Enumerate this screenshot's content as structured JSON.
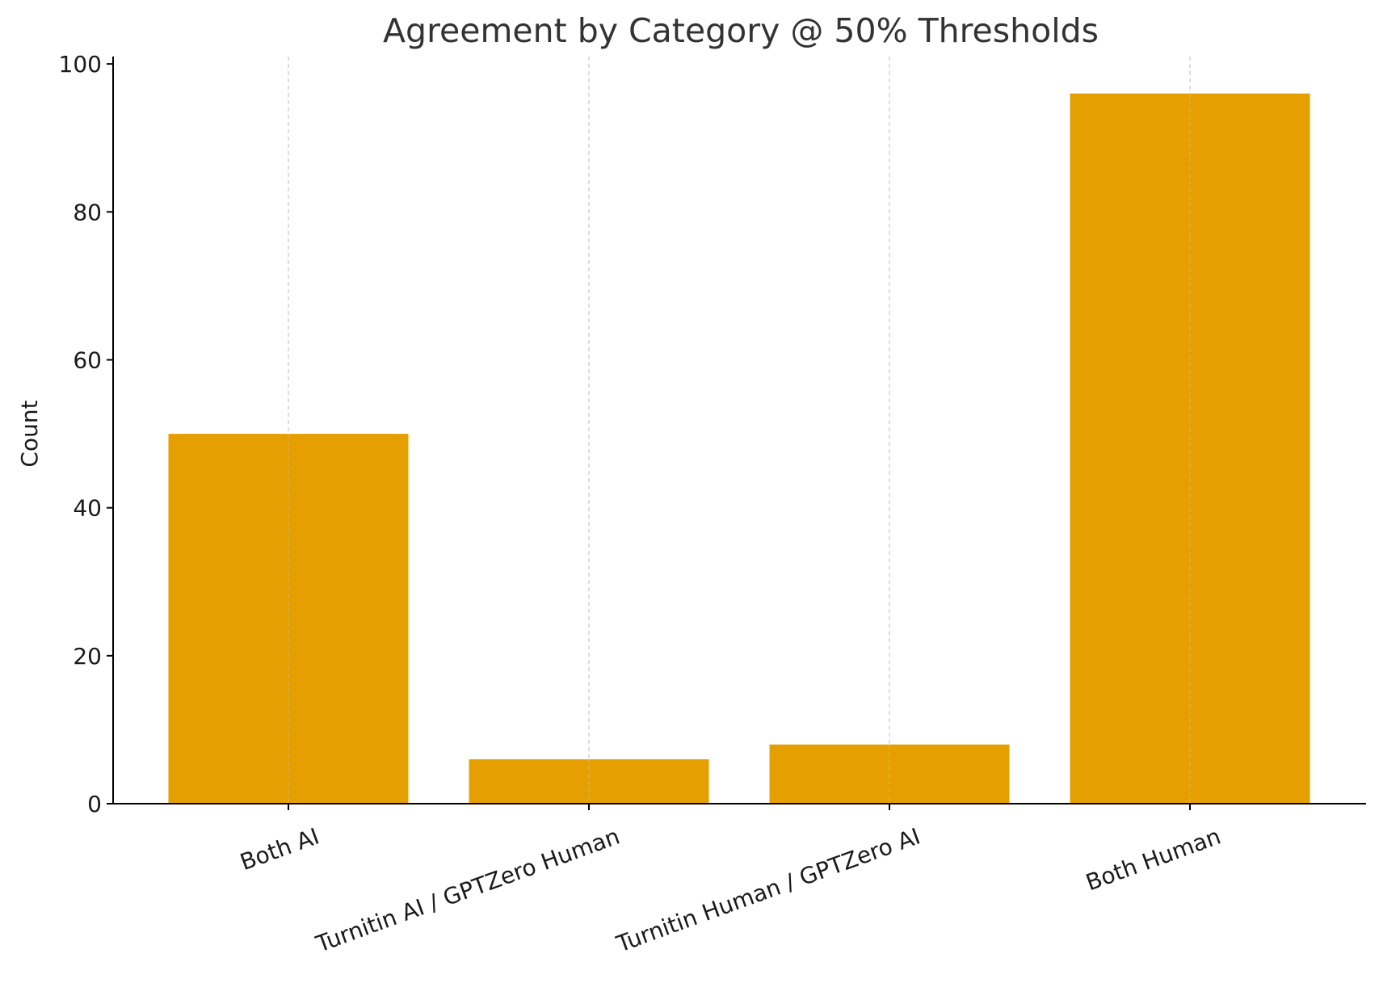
{
  "chart_data": {
    "type": "bar",
    "title": "Agreement by Category @ 50% Thresholds",
    "xlabel": "",
    "ylabel": "Count",
    "categories": [
      "Both AI",
      "Turnitin AI / GPTZero Human",
      "Turnitin Human / GPTZero AI",
      "Both Human"
    ],
    "values": [
      50,
      6,
      8,
      96
    ],
    "ylim": [
      0,
      101
    ],
    "yticks": [
      0,
      20,
      40,
      60,
      80,
      100
    ],
    "bar_color": "#E69F00",
    "grid": "x-dashed",
    "legend": "none"
  }
}
